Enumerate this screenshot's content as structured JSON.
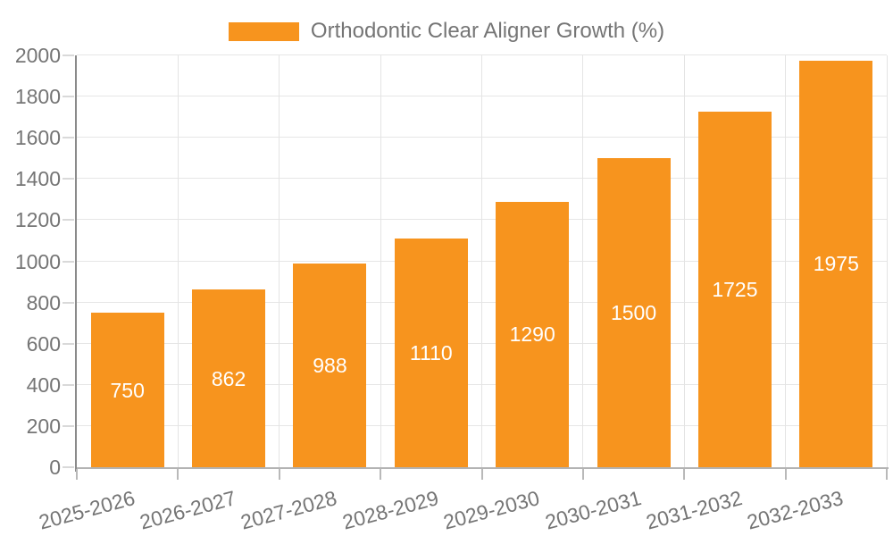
{
  "chart_data": {
    "type": "bar",
    "title": "",
    "series_name": "Orthodontic Clear Aligner Growth (%)",
    "categories": [
      "2025-2026",
      "2026-2027",
      "2027-2028",
      "2028-2029",
      "2029-2030",
      "2030-2031",
      "2031-2032",
      "2032-2033"
    ],
    "values": [
      750,
      862,
      988,
      1110,
      1290,
      1500,
      1725,
      1975
    ],
    "value_labels": [
      "750",
      "862",
      "988",
      "1110",
      "1290",
      "1500",
      "1725",
      "1975"
    ],
    "xlabel": "",
    "ylabel": "",
    "ylim": [
      0,
      2000
    ],
    "ytick_step": 200,
    "ytick_labels": [
      "0",
      "200",
      "400",
      "600",
      "800",
      "1000",
      "1200",
      "1400",
      "1600",
      "1800",
      "2000"
    ],
    "grid": true,
    "legend_position": "top-center",
    "colors": {
      "bar": "#F7941E",
      "value_label_text": "#FFFFFF",
      "axis_text": "#757575",
      "gridline": "#E6E6E6",
      "y_axis_line": "#8A8A8A",
      "x_axis_line": "#B3B3B3",
      "background": "#FFFFFF"
    }
  }
}
